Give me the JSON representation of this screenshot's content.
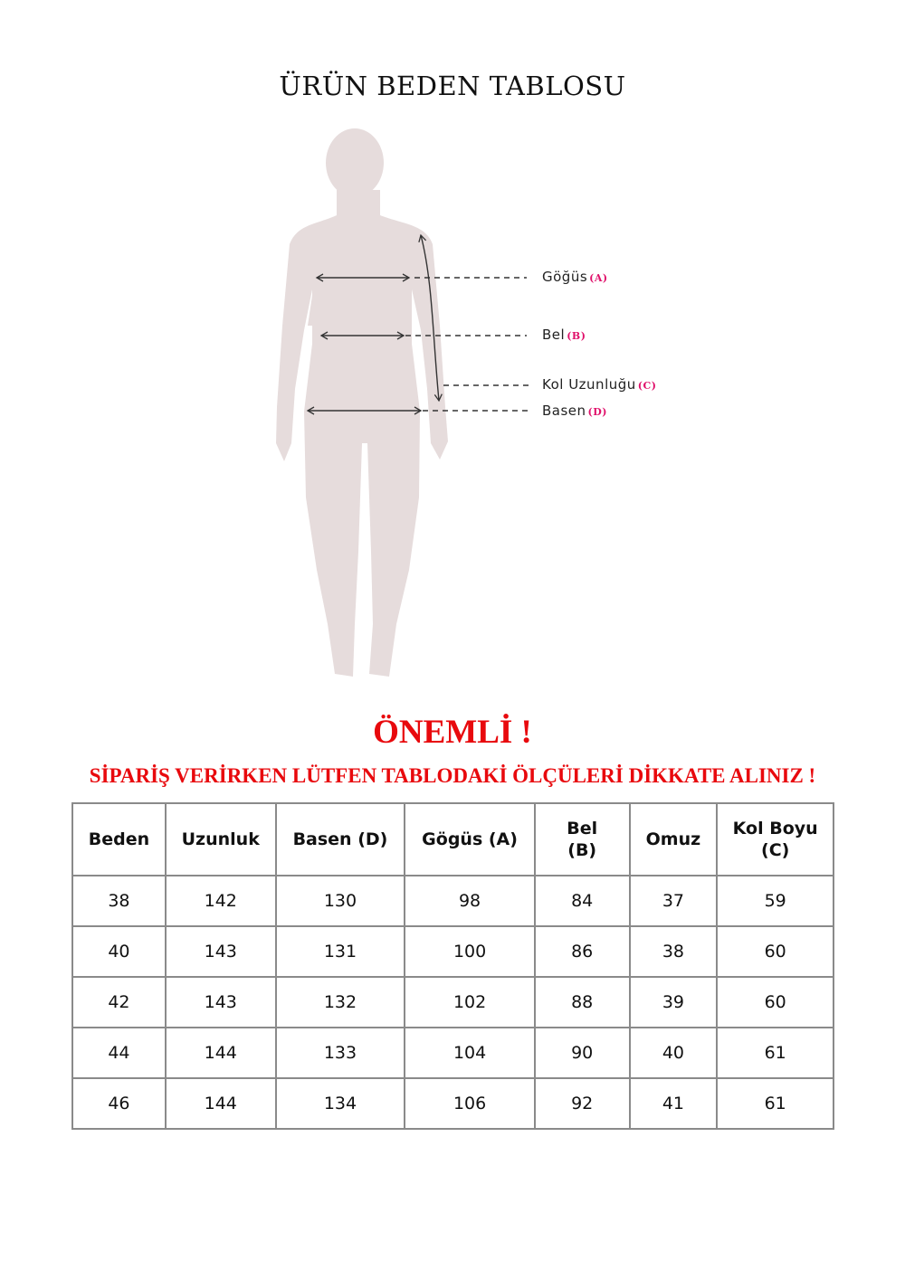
{
  "title": "ÜRÜN BEDEN TABLOSU",
  "figure": {
    "labels": [
      {
        "text": "Göğüs",
        "key": "(A)"
      },
      {
        "text": "Bel",
        "key": "(B)"
      },
      {
        "text": "Kol Uzunluğu",
        "key": "(C)"
      },
      {
        "text": "Basen",
        "key": "(D)"
      }
    ],
    "silhouette_color": "#e6dcdc",
    "key_color": "#e0106a"
  },
  "notice": {
    "heading": "ÖNEMLİ !",
    "message": "SİPARİŞ VERİRKEN LÜTFEN TABLODAKİ ÖLÇÜLERİ DİKKATE ALINIZ !",
    "color": "#e8090d"
  },
  "table": {
    "headers": [
      [
        "Beden"
      ],
      [
        "Uzunluk"
      ],
      [
        "Basen (D)"
      ],
      [
        "Gögüs (A)"
      ],
      [
        "Bel",
        "(B)"
      ],
      [
        "Omuz"
      ],
      [
        "Kol Boyu",
        "(C)"
      ]
    ],
    "rows": [
      [
        "38",
        "142",
        "130",
        "98",
        "84",
        "37",
        "59"
      ],
      [
        "40",
        "143",
        "131",
        "100",
        "86",
        "38",
        "60"
      ],
      [
        "42",
        "143",
        "132",
        "102",
        "88",
        "39",
        "60"
      ],
      [
        "44",
        "144",
        "133",
        "104",
        "90",
        "40",
        "61"
      ],
      [
        "46",
        "144",
        "134",
        "106",
        "92",
        "41",
        "61"
      ]
    ]
  }
}
